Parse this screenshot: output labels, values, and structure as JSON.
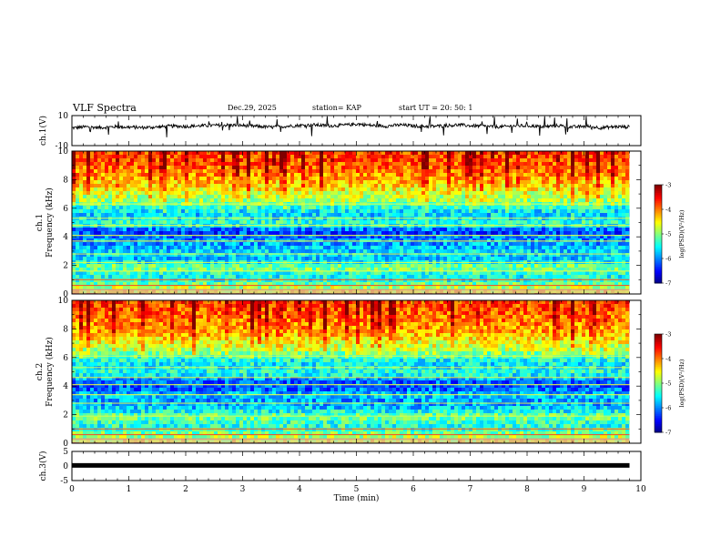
{
  "header": {
    "title": "VLF Spectra",
    "date": "Dec.29, 2025",
    "station": "station= KAP",
    "start_time": "start  UT =   20: 50: 1"
  },
  "chart_data": [
    {
      "type": "line",
      "name": "ch1-waveform",
      "title": "VLF Spectra",
      "ylabel": "ch.1(V)",
      "ylim": [
        -10,
        10
      ],
      "yticks": [
        "10",
        "-10"
      ],
      "xlim": [
        0,
        10
      ],
      "x_end": 9.8,
      "baseline": [
        1.8,
        2.5,
        2.0,
        2.6,
        2.3,
        2.0,
        2.4,
        3.0,
        2.8,
        3.2,
        3.5,
        3.7,
        3.4,
        2.8,
        2.3,
        2.9,
        3.5,
        3.8,
        3.2,
        3.6,
        4.4,
        3.4,
        3.0,
        3.8,
        3.0,
        2.8,
        3.2,
        3.8,
        3.2,
        2.8,
        2.5,
        3.2,
        3.2,
        2.6,
        3.4,
        2.4,
        2.9,
        1.9,
        2.6,
        2.5
      ]
    },
    {
      "type": "heatmap",
      "name": "ch1-spectrogram",
      "ylabel": "ch.1 Frequency (kHz)",
      "ylim": [
        0,
        10
      ],
      "yticks": [
        "0",
        "2",
        "4",
        "6",
        "8",
        "10"
      ],
      "xlim": [
        0,
        10
      ],
      "x_end": 9.8,
      "colorbar": {
        "label": "log(PSD)(V²/Hz)",
        "range": [
          -7,
          -3
        ],
        "ticks": [
          "-3",
          "-4",
          "-5",
          "-6",
          "-7"
        ]
      },
      "profile_freq_khz": [
        0,
        0.5,
        1,
        1.5,
        2,
        2.5,
        3,
        3.5,
        4,
        4.5,
        5,
        5.5,
        6,
        6.5,
        7,
        7.5,
        8,
        8.5,
        9,
        9.5,
        10
      ],
      "profile_log_psd": [
        -3.8,
        -4.6,
        -5.3,
        -5.5,
        -4.9,
        -5.7,
        -5.6,
        -5.8,
        -6.0,
        -6.3,
        -5.2,
        -5.7,
        -5.5,
        -4.9,
        -4.7,
        -4.4,
        -4.2,
        -4.0,
        -3.9,
        -3.8,
        -3.7
      ],
      "lines_khz": [
        0.3,
        0.6,
        1.0,
        1.6,
        2.2,
        2.8,
        3.7,
        4.1,
        4.8,
        5.3,
        6.3
      ]
    },
    {
      "type": "heatmap",
      "name": "ch2-spectrogram",
      "ylabel": "ch.2 Frequency (kHz)",
      "ylim": [
        0,
        10
      ],
      "yticks": [
        "0",
        "2",
        "4",
        "6",
        "8",
        "10"
      ],
      "xlim": [
        0,
        10
      ],
      "x_end": 9.8,
      "colorbar": {
        "label": "log(PSD)(V²/Hz)",
        "range": [
          -7,
          -3
        ],
        "ticks": [
          "-3",
          "-4",
          "-5",
          "-6",
          "-7"
        ]
      },
      "profile_freq_khz": [
        0,
        0.5,
        1,
        1.5,
        2,
        2.5,
        3,
        3.5,
        4,
        4.5,
        5,
        5.5,
        6,
        6.5,
        7,
        7.5,
        8,
        8.5,
        9,
        9.5,
        10
      ],
      "profile_log_psd": [
        -3.8,
        -4.7,
        -5.2,
        -5.4,
        -5.0,
        -5.6,
        -5.9,
        -5.7,
        -6.2,
        -6.1,
        -5.3,
        -5.6,
        -5.4,
        -4.8,
        -4.6,
        -4.3,
        -4.1,
        -4.0,
        -3.9,
        -3.8,
        -3.7
      ],
      "lines_khz": [
        0.3,
        0.6,
        1.0,
        1.9,
        2.8,
        3.4,
        4.1,
        4.6,
        5.3,
        6.1
      ]
    },
    {
      "type": "line",
      "name": "ch3-waveform",
      "xlabel": "Time (min)",
      "ylabel": "ch.3(V)",
      "ylim": [
        -5,
        5
      ],
      "yticks": [
        "5",
        "0",
        "-5"
      ],
      "xlim": [
        0,
        10
      ],
      "x_end": 9.8,
      "xticks": [
        "0",
        "1",
        "2",
        "3",
        "4",
        "5",
        "6",
        "7",
        "8",
        "9",
        "10"
      ],
      "level": 0.2
    }
  ]
}
